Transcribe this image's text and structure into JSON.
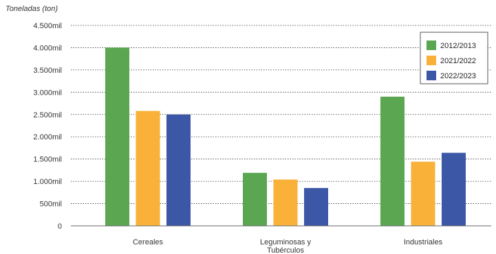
{
  "chart_data": {
    "type": "bar",
    "ylabel": "Toneladas (ton)",
    "ylim": [
      0,
      4500
    ],
    "yticks": [
      0,
      500,
      1000,
      1500,
      2000,
      2500,
      3000,
      3500,
      4000,
      4500
    ],
    "ytick_labels": [
      "0",
      "500mil",
      "1.000mil",
      "1.500mil",
      "2.000mil",
      "2.500mil",
      "3.000mil",
      "3.500mil",
      "4.000mil",
      "4.500mil"
    ],
    "categories": [
      "Cereales",
      "Leguminosas y Tubérculos",
      "Industriales"
    ],
    "category_lines": [
      [
        "Cereales"
      ],
      [
        "Leguminosas y",
        "Tubérculos"
      ],
      [
        "Industriales"
      ]
    ],
    "series": [
      {
        "name": "2012/2013",
        "color": "#5aa651",
        "values": [
          4000,
          1190,
          2900
        ]
      },
      {
        "name": "2021/2022",
        "color": "#f9b13a",
        "values": [
          2580,
          1040,
          1440
        ]
      },
      {
        "name": "2022/2023",
        "color": "#3b57a6",
        "values": [
          2500,
          850,
          1640
        ]
      }
    ],
    "grid": true,
    "legend_position": "top-right"
  }
}
